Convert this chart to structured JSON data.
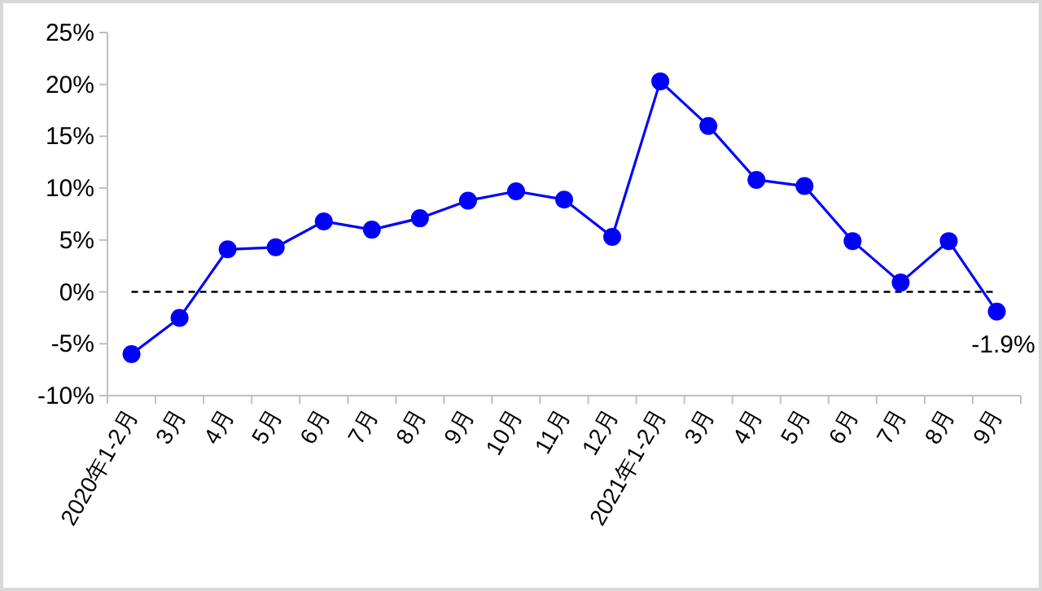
{
  "chart_data": {
    "type": "line",
    "categories": [
      "2020年1-2月",
      "3月",
      "4月",
      "5月",
      "6月",
      "7月",
      "8月",
      "9月",
      "10月",
      "11月",
      "12月",
      "2021年1-2月",
      "3月",
      "4月",
      "5月",
      "6月",
      "7月",
      "8月",
      "9月"
    ],
    "series": [
      {
        "color": "#0000ff",
        "values": [
          -6.0,
          -2.5,
          4.1,
          4.3,
          6.8,
          6.0,
          7.1,
          8.8,
          9.7,
          8.9,
          5.3,
          20.3,
          16.0,
          10.8,
          10.2,
          4.9,
          0.9,
          4.9,
          -1.9
        ],
        "value_labels": [
          null,
          null,
          null,
          null,
          null,
          null,
          null,
          null,
          null,
          null,
          null,
          null,
          null,
          null,
          null,
          null,
          null,
          null,
          "-1.9%"
        ]
      }
    ],
    "ylim": [
      -10,
      25
    ],
    "yticks": [
      {
        "value": -10,
        "label": "-10%"
      },
      {
        "value": -5,
        "label": "-5%"
      },
      {
        "value": 0,
        "label": "0%"
      },
      {
        "value": 5,
        "label": "5%"
      },
      {
        "value": 10,
        "label": "10%"
      },
      {
        "value": 15,
        "label": "15%"
      },
      {
        "value": 20,
        "label": "20%"
      },
      {
        "value": 25,
        "label": "25%"
      }
    ],
    "ref_lines": [
      {
        "axis": "y",
        "value": 0,
        "color": "#000000",
        "line_style": "dashed"
      }
    ],
    "marker": "circle",
    "line_style": "solid",
    "grid": false
  }
}
